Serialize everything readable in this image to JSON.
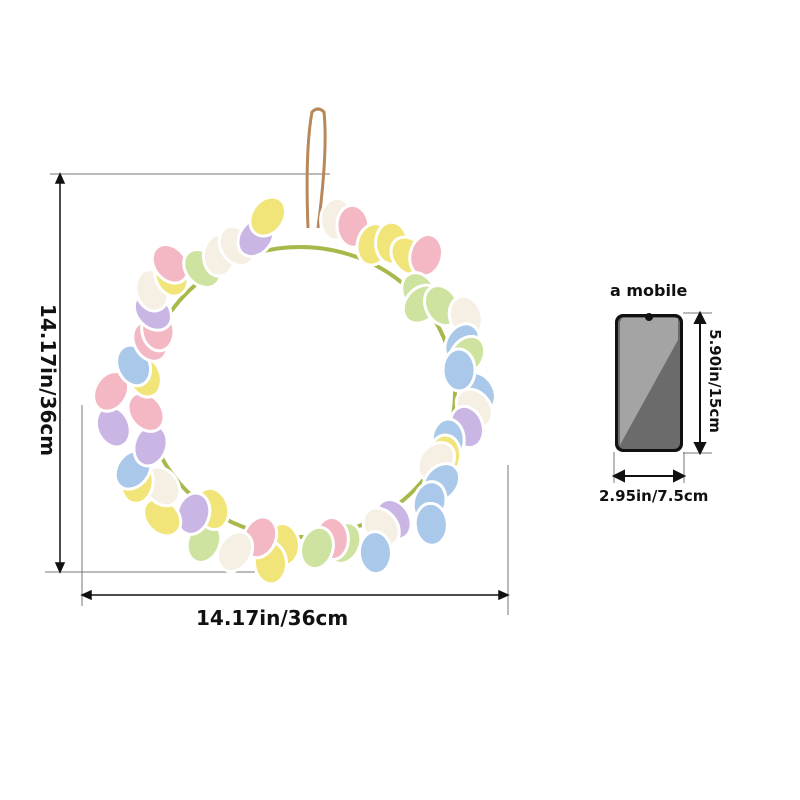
{
  "wreath": {
    "width_label": "14.17in/36cm",
    "height_label": "14.17in/36cm",
    "egg_colors": [
      "#f3b8c4",
      "#a9c8ea",
      "#f1e57a",
      "#cfe3a1",
      "#c9b6e4",
      "#f6efe4"
    ],
    "vine_color": "#a8b84a",
    "hanger_color": "#b8875a"
  },
  "mobile": {
    "title": "a mobile",
    "height_label": "5.90in/15cm",
    "width_label": "2.95in/7.5cm",
    "screen_light": "#a4a4a4",
    "screen_dark": "#6b6b6b"
  }
}
